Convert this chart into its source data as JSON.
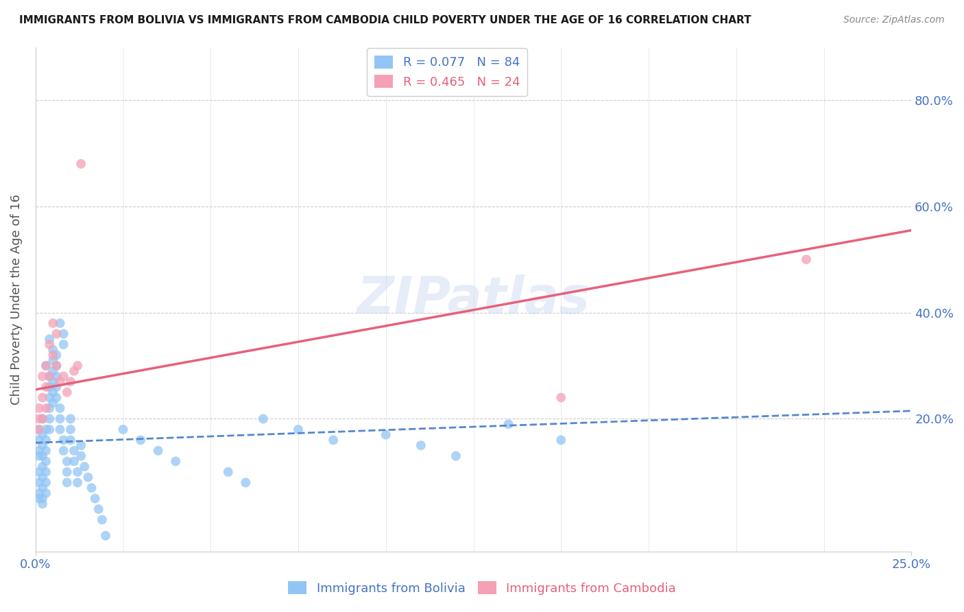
{
  "title": "IMMIGRANTS FROM BOLIVIA VS IMMIGRANTS FROM CAMBODIA CHILD POVERTY UNDER THE AGE OF 16 CORRELATION CHART",
  "source": "Source: ZipAtlas.com",
  "ylabel": "Child Poverty Under the Age of 16",
  "xlim": [
    0.0,
    0.25
  ],
  "ylim": [
    -0.05,
    0.9
  ],
  "bolivia_color": "#92C5F5",
  "cambodia_color": "#F4A0B5",
  "bolivia_line_color": "#5588CC",
  "cambodia_line_color": "#E8607A",
  "bolivia_R": 0.077,
  "bolivia_N": 84,
  "cambodia_R": 0.465,
  "cambodia_N": 24,
  "watermark": "ZIPatlas",
  "tick_color": "#4472C4",
  "grid_color": "#cccccc",
  "ylabel_right_vals": [
    0.2,
    0.4,
    0.6,
    0.8
  ],
  "ylabel_right_labels": [
    "20.0%",
    "40.0%",
    "60.0%",
    "80.0%"
  ],
  "bolivia_line_x": [
    0.0,
    0.25
  ],
  "bolivia_line_y": [
    0.155,
    0.215
  ],
  "cambodia_line_x": [
    0.0,
    0.25
  ],
  "cambodia_line_y": [
    0.255,
    0.555
  ],
  "bolivia_x": [
    0.001,
    0.001,
    0.001,
    0.001,
    0.001,
    0.001,
    0.001,
    0.001,
    0.002,
    0.002,
    0.002,
    0.002,
    0.002,
    0.002,
    0.002,
    0.002,
    0.002,
    0.003,
    0.003,
    0.003,
    0.003,
    0.003,
    0.003,
    0.003,
    0.003,
    0.004,
    0.004,
    0.004,
    0.004,
    0.004,
    0.004,
    0.004,
    0.005,
    0.005,
    0.005,
    0.005,
    0.005,
    0.005,
    0.006,
    0.006,
    0.006,
    0.006,
    0.006,
    0.007,
    0.007,
    0.007,
    0.007,
    0.008,
    0.008,
    0.008,
    0.008,
    0.009,
    0.009,
    0.009,
    0.01,
    0.01,
    0.01,
    0.011,
    0.011,
    0.012,
    0.012,
    0.013,
    0.013,
    0.014,
    0.015,
    0.016,
    0.017,
    0.018,
    0.019,
    0.02,
    0.025,
    0.03,
    0.035,
    0.04,
    0.055,
    0.06,
    0.065,
    0.075,
    0.085,
    0.1,
    0.11,
    0.12,
    0.135,
    0.15
  ],
  "bolivia_y": [
    0.14,
    0.16,
    0.18,
    0.13,
    0.1,
    0.08,
    0.06,
    0.05,
    0.17,
    0.15,
    0.13,
    0.11,
    0.09,
    0.07,
    0.05,
    0.04,
    0.2,
    0.18,
    0.16,
    0.14,
    0.12,
    0.1,
    0.08,
    0.06,
    0.3,
    0.28,
    0.26,
    0.24,
    0.22,
    0.2,
    0.18,
    0.35,
    0.33,
    0.31,
    0.29,
    0.27,
    0.25,
    0.23,
    0.32,
    0.3,
    0.28,
    0.26,
    0.24,
    0.22,
    0.2,
    0.18,
    0.38,
    0.36,
    0.34,
    0.16,
    0.14,
    0.12,
    0.1,
    0.08,
    0.2,
    0.18,
    0.16,
    0.14,
    0.12,
    0.1,
    0.08,
    0.15,
    0.13,
    0.11,
    0.09,
    0.07,
    0.05,
    0.03,
    0.01,
    -0.02,
    0.18,
    0.16,
    0.14,
    0.12,
    0.1,
    0.08,
    0.2,
    0.18,
    0.16,
    0.17,
    0.15,
    0.13,
    0.19,
    0.16
  ],
  "cambodia_x": [
    0.001,
    0.001,
    0.001,
    0.002,
    0.002,
    0.002,
    0.003,
    0.003,
    0.003,
    0.004,
    0.004,
    0.005,
    0.005,
    0.006,
    0.006,
    0.007,
    0.008,
    0.009,
    0.01,
    0.011,
    0.012,
    0.013,
    0.15,
    0.22
  ],
  "cambodia_y": [
    0.2,
    0.22,
    0.18,
    0.24,
    0.28,
    0.2,
    0.26,
    0.3,
    0.22,
    0.34,
    0.28,
    0.32,
    0.38,
    0.3,
    0.36,
    0.27,
    0.28,
    0.25,
    0.27,
    0.29,
    0.3,
    0.68,
    0.24,
    0.5
  ]
}
